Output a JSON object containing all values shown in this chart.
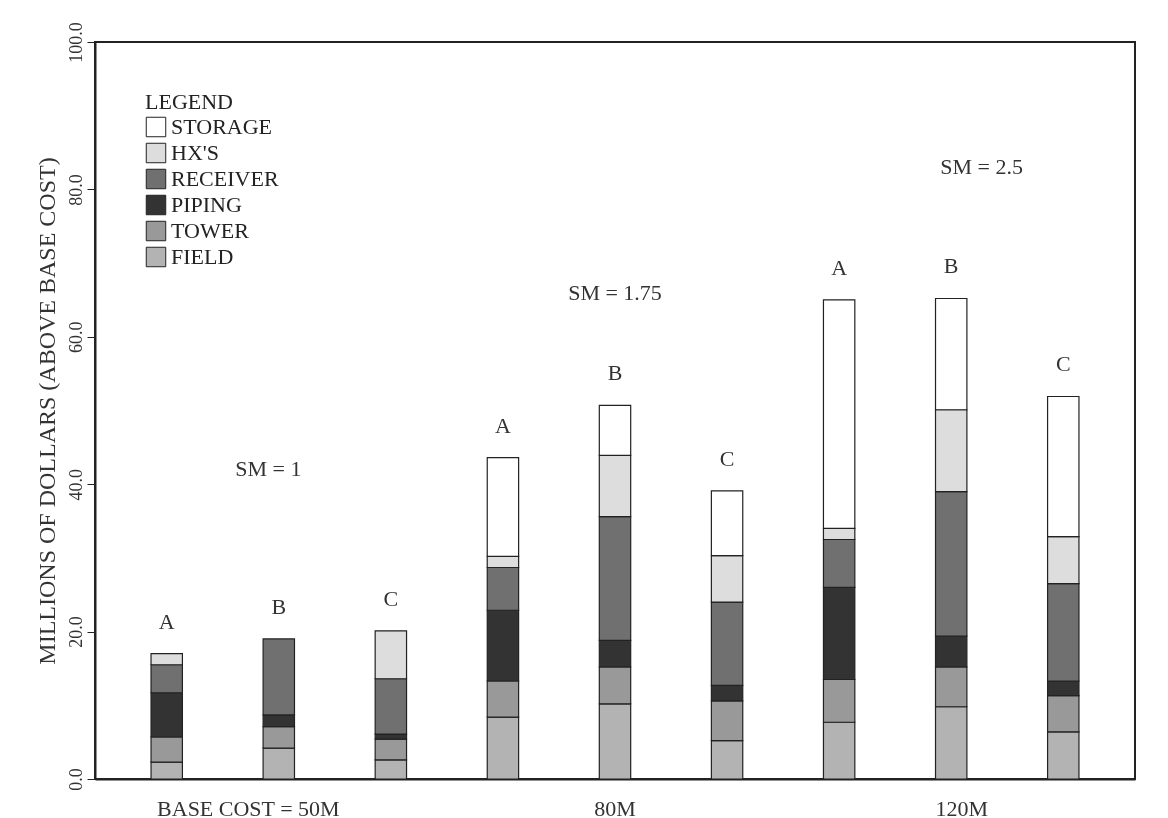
{
  "chart_data": {
    "type": "bar",
    "stacked": true,
    "ylabel": "MILLIONS OF DOLLARS (ABOVE BASE COST)",
    "legend_title": "LEGEND",
    "legend": "top left",
    "grid": false,
    "categories": [
      "A",
      "B",
      "C",
      "A",
      "B",
      "C",
      "A",
      "B",
      "C"
    ],
    "ylim": [
      0,
      100
    ],
    "yticks": [
      {
        "value": 0,
        "label": "0.0"
      },
      {
        "value": 20,
        "label": "20.0"
      },
      {
        "value": 40,
        "label": "40.0"
      },
      {
        "value": 60,
        "label": "60.0"
      },
      {
        "value": 80,
        "label": "80.0"
      },
      {
        "value": 100,
        "label": "100.0"
      }
    ],
    "series": [
      {
        "name": "FIELD",
        "color": "#b3b3b3",
        "values": [
          2.3,
          4.2,
          2.6,
          8.4,
          10.2,
          5.2,
          7.7,
          9.8,
          6.4
        ]
      },
      {
        "name": "TOWER",
        "color": "#999999",
        "values": [
          3.4,
          2.9,
          2.8,
          4.9,
          5.0,
          5.4,
          5.8,
          5.4,
          4.9
        ]
      },
      {
        "name": "PIPING",
        "color": "#333333",
        "values": [
          6.0,
          1.6,
          0.7,
          9.6,
          3.6,
          2.1,
          12.5,
          4.2,
          2.0
        ]
      },
      {
        "name": "RECEIVER",
        "color": "#707070",
        "values": [
          3.8,
          10.3,
          7.5,
          5.8,
          16.8,
          11.3,
          6.5,
          19.6,
          13.2
        ]
      },
      {
        "name": "HX'S",
        "color": "#dddddd",
        "values": [
          1.5,
          null,
          6.5,
          1.5,
          8.3,
          6.3,
          1.5,
          11.1,
          6.4
        ]
      },
      {
        "name": "STORAGE",
        "color": "#ffffff",
        "values": [
          null,
          null,
          null,
          13.4,
          6.8,
          8.8,
          31.0,
          15.1,
          19.0
        ]
      }
    ],
    "annotations": [
      "SM = 1",
      "SM = 1.75",
      "SM = 2.5",
      "BASE COST = 50M",
      "80M",
      "120M"
    ]
  }
}
